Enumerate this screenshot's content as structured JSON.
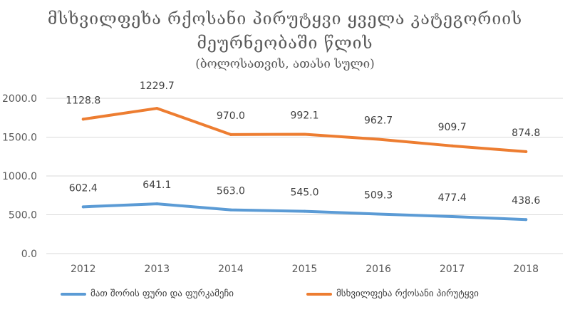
{
  "chart_data": {
    "type": "line",
    "title_lines": [
      "მსხვილფეხა რქოსანი პირუტყვი ყველა კატეგორიის",
      "მეურნეობაში წლის"
    ],
    "subtitle": "(ბოლოსათვის, ათასი სული)",
    "xlabel": "",
    "ylabel": "",
    "categories": [
      "2012",
      "2013",
      "2014",
      "2015",
      "2016",
      "2017",
      "2018"
    ],
    "ylim": [
      0,
      2000
    ],
    "yticks": [
      0,
      500,
      1000,
      1500,
      2000
    ],
    "ytick_labels": [
      "0.0",
      "500.0",
      "1000.0",
      "1500.0",
      "2000.0"
    ],
    "grid": true,
    "legend_position": "bottom",
    "series": [
      {
        "name": "მათ შორის ფური და ფურკამეჩი",
        "color": "#5b9bd5",
        "values": [
          602.4,
          641.1,
          563.0,
          545.0,
          509.3,
          477.4,
          438.6
        ],
        "labels": [
          "602.4",
          "641.1",
          "563.0",
          "545.0",
          "509.3",
          "477.4",
          "438.6"
        ],
        "plot_values": [
          602.4,
          641.1,
          563.0,
          545.0,
          509.3,
          477.4,
          438.6
        ]
      },
      {
        "name": "მსხვილფეხა რქოსანი პირუტყვი",
        "color": "#ed7d31",
        "values": [
          1128.8,
          1229.7,
          970.0,
          992.1,
          962.7,
          909.7,
          874.8
        ],
        "labels": [
          "1128.8",
          "1229.7",
          "970.0",
          "992.1",
          "962.7",
          "909.7",
          "874.8"
        ],
        "plot_values": [
          1731.2,
          1870.8,
          1533.0,
          1537.1,
          1472.0,
          1387.1,
          1313.4
        ]
      }
    ]
  }
}
